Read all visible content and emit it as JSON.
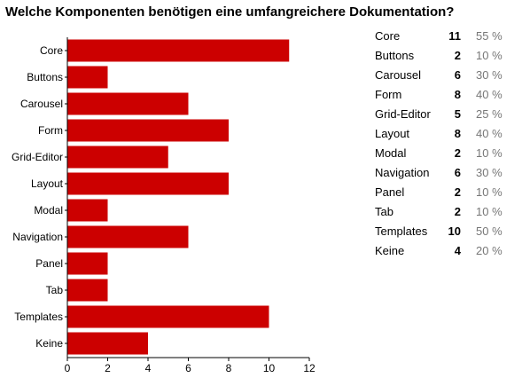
{
  "chart_data": {
    "type": "bar",
    "orientation": "horizontal",
    "title": "Welche Komponenten benötigen eine umfangreichere Dokumentation?",
    "categories": [
      "Core",
      "Buttons",
      "Carousel",
      "Form",
      "Grid-Editor",
      "Layout",
      "Modal",
      "Navigation",
      "Panel",
      "Tab",
      "Templates",
      "Keine"
    ],
    "values": [
      11,
      2,
      6,
      8,
      5,
      8,
      2,
      6,
      2,
      2,
      10,
      4
    ],
    "percentages": [
      "55 %",
      "10 %",
      "30 %",
      "40 %",
      "25 %",
      "40 %",
      "10 %",
      "30 %",
      "10 %",
      "10 %",
      "50 %",
      "20 %"
    ],
    "xlim": [
      0,
      12
    ],
    "xticks": [
      0,
      2,
      4,
      6,
      8,
      10,
      12
    ],
    "grid": false,
    "bar_color": "#cc0000"
  }
}
